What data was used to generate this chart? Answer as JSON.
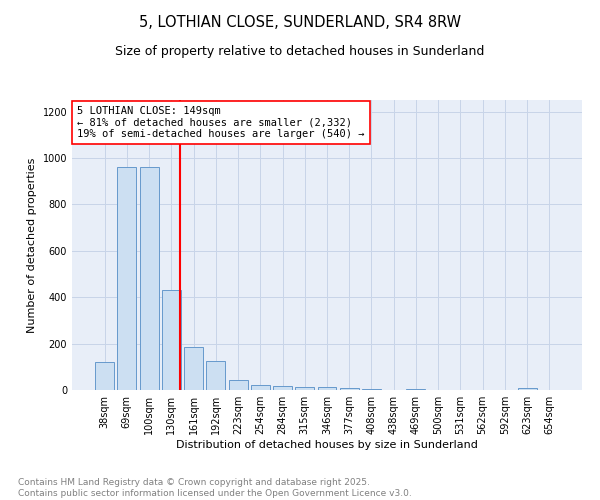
{
  "title_line1": "5, LOTHIAN CLOSE, SUNDERLAND, SR4 8RW",
  "title_line2": "Size of property relative to detached houses in Sunderland",
  "xlabel": "Distribution of detached houses by size in Sunderland",
  "ylabel": "Number of detached properties",
  "categories": [
    "38sqm",
    "69sqm",
    "100sqm",
    "130sqm",
    "161sqm",
    "192sqm",
    "223sqm",
    "254sqm",
    "284sqm",
    "315sqm",
    "346sqm",
    "377sqm",
    "408sqm",
    "438sqm",
    "469sqm",
    "500sqm",
    "531sqm",
    "562sqm",
    "592sqm",
    "623sqm",
    "654sqm"
  ],
  "values": [
    120,
    960,
    960,
    430,
    185,
    125,
    45,
    20,
    18,
    15,
    15,
    10,
    5,
    0,
    5,
    0,
    0,
    0,
    0,
    8,
    0
  ],
  "bar_color": "#ccdff2",
  "bar_edge_color": "#6699cc",
  "grid_color": "#c8d4e8",
  "background_color": "#e8eef8",
  "vline_color": "red",
  "vline_pos": 3.4,
  "annotation_text": "5 LOTHIAN CLOSE: 149sqm\n← 81% of detached houses are smaller (2,332)\n19% of semi-detached houses are larger (540) →",
  "footer_line1": "Contains HM Land Registry data © Crown copyright and database right 2025.",
  "footer_line2": "Contains public sector information licensed under the Open Government Licence v3.0.",
  "ylim": [
    0,
    1250
  ],
  "yticks": [
    0,
    200,
    400,
    600,
    800,
    1000,
    1200
  ],
  "title_fontsize": 10.5,
  "subtitle_fontsize": 9,
  "axis_label_fontsize": 8,
  "tick_fontsize": 7,
  "annotation_fontsize": 7.5,
  "footer_fontsize": 6.5
}
